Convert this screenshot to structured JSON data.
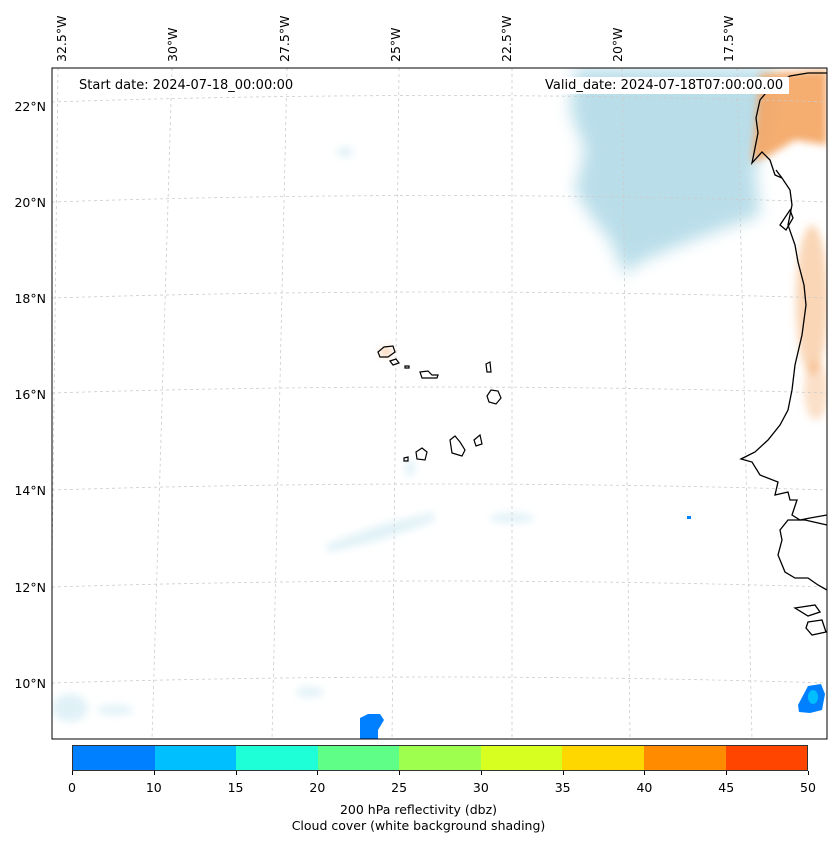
{
  "map": {
    "lon_labels": [
      "32.5°W",
      "30°W",
      "27.5°W",
      "25°W",
      "22.5°W",
      "20°W",
      "17.5°W"
    ],
    "lat_labels": [
      "22°N",
      "20°N",
      "18°N",
      "16°N",
      "14°N",
      "12°N",
      "10°N"
    ],
    "start_date": "Start date: 2024-07-18_00:00:00",
    "valid_date": "Valid_date: 2024-07-18T07:00:00.00",
    "land_color": "#ffffff",
    "coastline_color": "#000000",
    "gridline_color": "#cccccc",
    "cloud_color": "#add8e6",
    "warm_color": "#f4a460"
  },
  "colorbar": {
    "ticks": [
      "0",
      "10",
      "15",
      "20",
      "25",
      "30",
      "35",
      "40",
      "45",
      "50"
    ],
    "colors": [
      "#007fff",
      "#00bfff",
      "#1fffd7",
      "#5fff87",
      "#9fff4f",
      "#d7ff1f",
      "#ffd700",
      "#ff8c00",
      "#ff4500"
    ],
    "label_line1": "200 hPa reflectivity (dbz)",
    "label_line2": "Cloud cover (white background shading)"
  }
}
